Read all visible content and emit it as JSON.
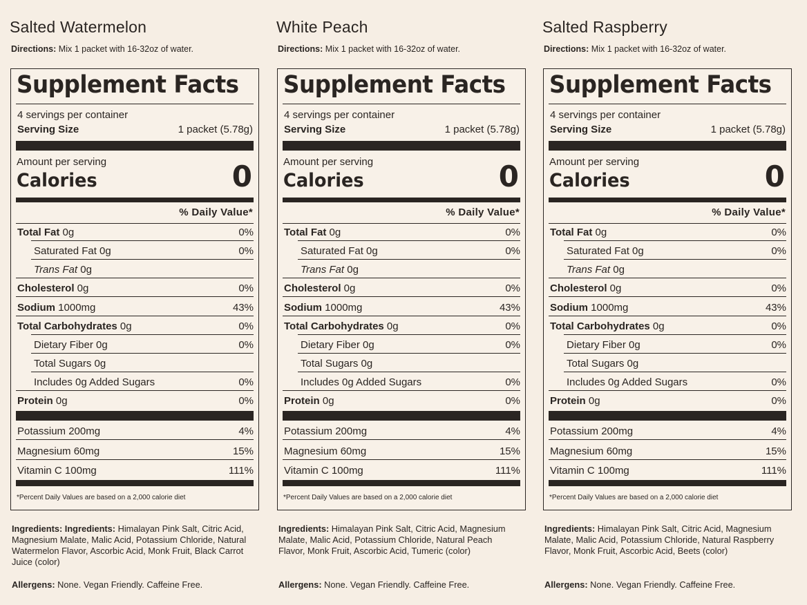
{
  "common": {
    "directions_label": "Directions:",
    "directions_text": "Mix 1 packet with 16-32oz of water.",
    "panel_title": "Supplement Facts",
    "servings_per_container": "4 servings per container",
    "serving_size_label": "Serving Size",
    "serving_size_value": "1 packet (5.78g)",
    "amount_per_serving": "Amount per serving",
    "calories_label": "Calories",
    "calories_value": "0",
    "daily_value_header": "% Daily Value*",
    "footnote": "*Percent Daily Values are based on a 2,000 calorie diet",
    "ingredients_label": "Ingredients:",
    "allergens_label": "Allergens:",
    "allergens_text": "None. Vegan Friendly. Caffeine Free."
  },
  "nutrients": [
    {
      "bold": "Total Fat",
      "italic": "",
      "rest": " 0g",
      "pct": "0%"
    },
    {
      "bold": "",
      "italic": "",
      "rest": "Saturated Fat 0g",
      "pct": "0%"
    },
    {
      "bold": "",
      "italic": "Trans Fat",
      "rest": " 0g",
      "pct": ""
    },
    {
      "bold": "Cholesterol",
      "italic": "",
      "rest": " 0g",
      "pct": "0%"
    },
    {
      "bold": "Sodium",
      "italic": "",
      "rest": " 1000mg",
      "pct": "43%"
    },
    {
      "bold": "Total Carbohydrates",
      "italic": "",
      "rest": " 0g",
      "pct": "0%"
    },
    {
      "bold": "",
      "italic": "",
      "rest": "Dietary Fiber 0g",
      "pct": "0%"
    },
    {
      "bold": "",
      "italic": "",
      "rest": "Total Sugars 0g",
      "pct": ""
    },
    {
      "bold": "",
      "italic": "",
      "rest": "Includes 0g Added Sugars",
      "pct": "0%"
    },
    {
      "bold": "Protein",
      "italic": "",
      "rest": " 0g",
      "pct": "0%"
    }
  ],
  "minerals": [
    {
      "rest": "Potassium 200mg",
      "pct": "4%"
    },
    {
      "rest": "Magnesium 60mg",
      "pct": "15%"
    },
    {
      "rest": "Vitamin C 100mg",
      "pct": "111%"
    }
  ],
  "products": [
    {
      "name": "Salted Watermelon",
      "ingredients_prefix": "Ingredients:",
      "ingredients": "Himalayan Pink Salt, Citric Acid, Magnesium Malate, Malic Acid, Potassium Chloride, Natural Watermelon Flavor, Ascorbic Acid, Monk Fruit, Black Carrot Juice (color)"
    },
    {
      "name": "White Peach",
      "ingredients_prefix": "",
      "ingredients": "Himalayan Pink Salt, Citric Acid, Magnesium Malate, Malic Acid, Potassium Chloride, Natural Peach Flavor, Monk Fruit, Ascorbic Acid, Tumeric (color)"
    },
    {
      "name": "Salted Raspberry",
      "ingredients_prefix": "",
      "ingredients": "Himalayan Pink Salt, Citric Acid, Magnesium Malate, Malic Acid, Potassium Chloride, Natural Raspberry Flavor, Monk Fruit, Ascorbic Acid, Beets (color)"
    }
  ]
}
